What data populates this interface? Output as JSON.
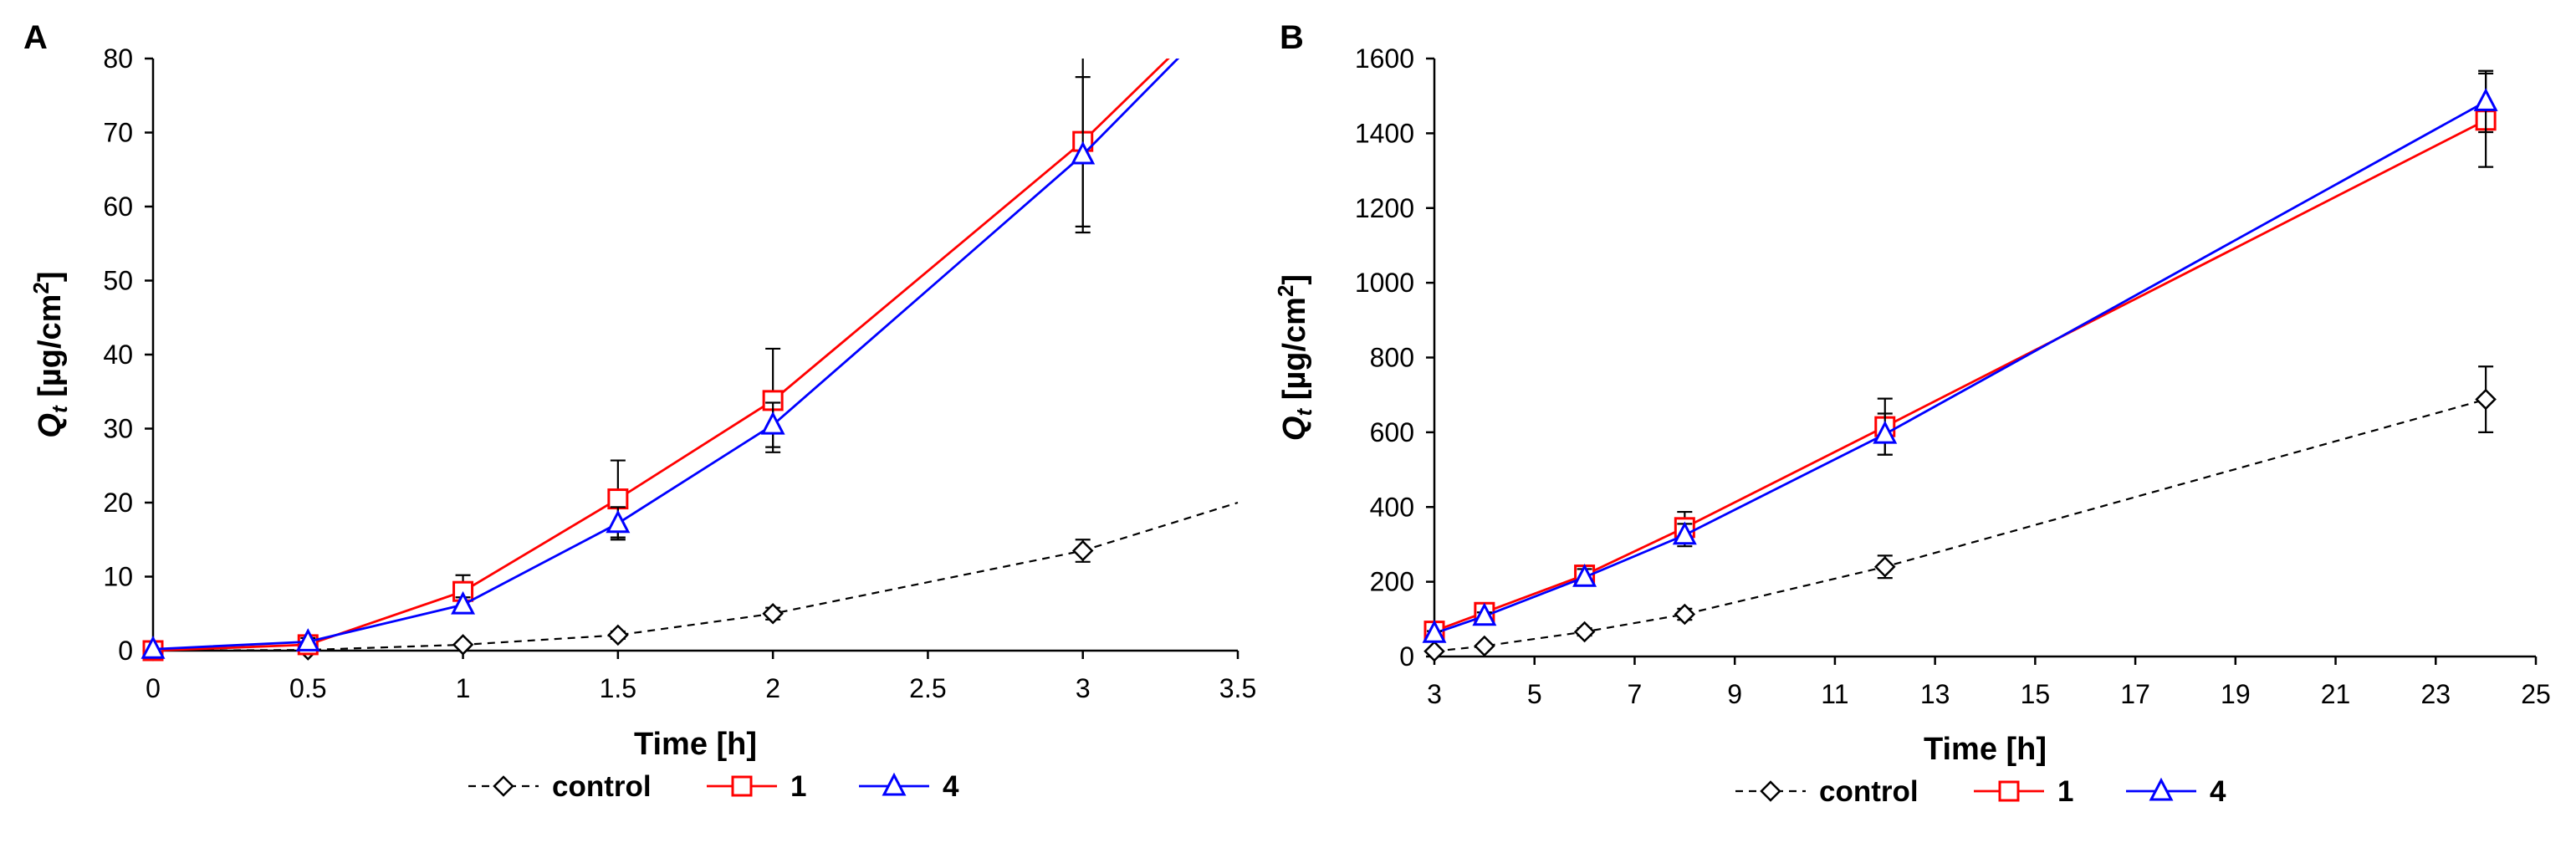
{
  "chart_data": [
    {
      "panel": "A",
      "type": "line",
      "xlabel": "Time [h]",
      "ylabel_main": "Q",
      "ylabel_sub": "t",
      "ylabel_unit_pre": " [µg/cm",
      "ylabel_unit_sup": "2",
      "ylabel_unit_post": "]",
      "xlim": [
        0,
        3.5
      ],
      "ylim": [
        0,
        80
      ],
      "x_ticks": [
        0,
        0.5,
        1,
        1.5,
        2,
        2.5,
        3,
        3.5
      ],
      "x_tick_labels": [
        "0",
        "0.5",
        "1",
        "1.5",
        "2",
        "2.5",
        "3",
        "3.5"
      ],
      "y_ticks": [
        0,
        10,
        20,
        30,
        40,
        50,
        60,
        70,
        80
      ],
      "y_tick_labels": [
        "0",
        "10",
        "20",
        "30",
        "40",
        "50",
        "60",
        "70",
        "80"
      ],
      "series": [
        {
          "name": "control",
          "color": "#000000",
          "dash": true,
          "marker": "diamond",
          "x": [
            0,
            0.5,
            1,
            1.5,
            2,
            3
          ],
          "y": [
            0,
            0.1,
            0.8,
            2.1,
            5.0,
            13.5
          ],
          "err": [
            0,
            0,
            0.3,
            0.5,
            0.8,
            1.5
          ],
          "extend_x": 3.5,
          "extend_y": 20
        },
        {
          "name": "1",
          "color": "#ff0000",
          "dash": false,
          "marker": "square",
          "x": [
            0,
            0.5,
            1,
            1.5,
            2,
            3
          ],
          "y": [
            0,
            0.8,
            8.0,
            20.5,
            33.8,
            68.8
          ],
          "err": [
            0,
            0.3,
            2.2,
            5.2,
            7.0,
            11.5
          ],
          "extend_x": 3.3,
          "extend_y": 81
        },
        {
          "name": "4",
          "color": "#0000ff",
          "dash": false,
          "marker": "triangle",
          "x": [
            0,
            0.5,
            1,
            1.5,
            2,
            3
          ],
          "y": [
            0.2,
            1.2,
            6.2,
            17.2,
            30.5,
            67.0
          ],
          "err": [
            0,
            0.5,
            1.0,
            2.2,
            3.0,
            10.5
          ],
          "extend_x": 3.33,
          "extend_y": 81
        }
      ]
    },
    {
      "panel": "B",
      "type": "line",
      "xlabel": "Time [h]",
      "ylabel_main": "Q",
      "ylabel_sub": "t",
      "ylabel_unit_pre": " [µg/cm",
      "ylabel_unit_sup": "2",
      "ylabel_unit_post": "]",
      "xlim": [
        3,
        25
      ],
      "ylim": [
        0,
        1600
      ],
      "x_ticks": [
        3,
        5,
        7,
        9,
        11,
        13,
        15,
        17,
        19,
        21,
        23,
        25
      ],
      "x_tick_labels": [
        "3",
        "5",
        "7",
        "9",
        "11",
        "13",
        "15",
        "17",
        "19",
        "21",
        "23",
        "25"
      ],
      "y_ticks": [
        0,
        200,
        400,
        600,
        800,
        1000,
        1200,
        1400,
        1600
      ],
      "y_tick_labels": [
        "0",
        "200",
        "400",
        "600",
        "800",
        "1000",
        "1200",
        "1400",
        "1600"
      ],
      "series": [
        {
          "name": "control",
          "color": "#000000",
          "dash": true,
          "marker": "diamond",
          "x": [
            3,
            4,
            6,
            8,
            12,
            24
          ],
          "y": [
            14,
            28,
            66,
            113,
            240,
            688
          ],
          "err": [
            4,
            6,
            10,
            15,
            30,
            88
          ]
        },
        {
          "name": "1",
          "color": "#ff0000",
          "dash": false,
          "marker": "square",
          "x": [
            3,
            4,
            6,
            8,
            12,
            24
          ],
          "y": [
            68,
            118,
            218,
            345,
            615,
            1435
          ],
          "err": [
            8,
            12,
            25,
            42,
            75,
            125
          ]
        },
        {
          "name": "4",
          "color": "#0000ff",
          "dash": false,
          "marker": "triangle",
          "x": [
            3,
            4,
            6,
            8,
            12,
            24
          ],
          "y": [
            62,
            108,
            212,
            325,
            595,
            1485
          ],
          "err": [
            6,
            10,
            22,
            30,
            55,
            82
          ]
        }
      ]
    }
  ],
  "legend": [
    {
      "name": "control",
      "color": "#000000",
      "dash": true,
      "marker": "diamond"
    },
    {
      "name": "1",
      "color": "#ff0000",
      "dash": false,
      "marker": "square"
    },
    {
      "name": "4",
      "color": "#0000ff",
      "dash": false,
      "marker": "triangle"
    }
  ]
}
